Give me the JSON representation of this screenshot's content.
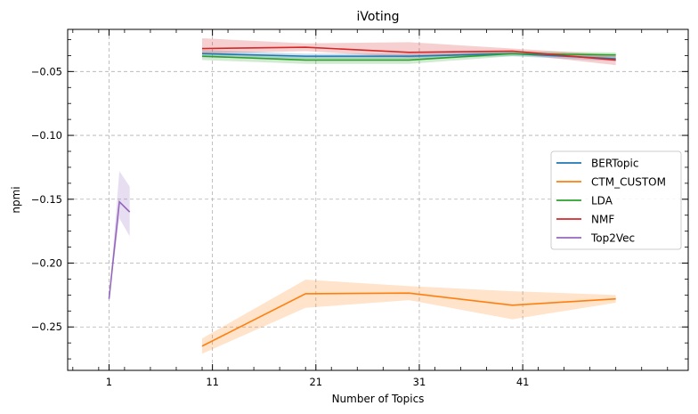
{
  "chart_data": {
    "type": "line",
    "title": "iVoting",
    "xlabel": "Number of Topics",
    "ylabel": "npmi",
    "xlim": [
      -3,
      57
    ],
    "ylim": [
      -0.284,
      -0.017
    ],
    "x_ticks": [
      1,
      11,
      21,
      31,
      41
    ],
    "y_ticks": [
      -0.05,
      -0.1,
      -0.15,
      -0.2,
      -0.25
    ],
    "y_tick_labels": [
      "−0.05",
      "−0.10",
      "−0.15",
      "−0.20",
      "−0.25"
    ],
    "grid": true,
    "legend_position": "center-right",
    "series": [
      {
        "name": "BERTopic",
        "color": "#1f77b4",
        "x": [
          10,
          20,
          30,
          40,
          50
        ],
        "y": [
          -0.036,
          -0.038,
          -0.038,
          -0.036,
          -0.04
        ],
        "lower": [
          -0.039,
          -0.04,
          -0.04,
          -0.038,
          -0.042
        ],
        "upper": [
          -0.033,
          -0.036,
          -0.036,
          -0.034,
          -0.038
        ]
      },
      {
        "name": "CTM_CUSTOM",
        "color": "#ff7f0e",
        "x": [
          10,
          20,
          30,
          40,
          50
        ],
        "y": [
          -0.265,
          -0.224,
          -0.2235,
          -0.233,
          -0.228
        ],
        "lower": [
          -0.271,
          -0.235,
          -0.229,
          -0.244,
          -0.231
        ],
        "upper": [
          -0.259,
          -0.213,
          -0.218,
          -0.222,
          -0.225
        ]
      },
      {
        "name": "LDA",
        "color": "#2ca02c",
        "x": [
          10,
          20,
          30,
          40,
          50
        ],
        "y": [
          -0.038,
          -0.041,
          -0.041,
          -0.036,
          -0.037
        ],
        "lower": [
          -0.041,
          -0.044,
          -0.044,
          -0.038,
          -0.039
        ],
        "upper": [
          -0.035,
          -0.038,
          -0.038,
          -0.034,
          -0.035
        ]
      },
      {
        "name": "NMF",
        "color": "#d62728",
        "x": [
          10,
          20,
          30,
          40,
          50
        ],
        "y": [
          -0.032,
          -0.031,
          -0.035,
          -0.034,
          -0.041
        ],
        "lower": [
          -0.036,
          -0.034,
          -0.039,
          -0.036,
          -0.045
        ],
        "upper": [
          -0.024,
          -0.028,
          -0.027,
          -0.032,
          -0.037
        ]
      },
      {
        "name": "Top2Vec",
        "color": "#9467bd",
        "x": [
          1,
          2,
          3
        ],
        "y": [
          -0.228,
          -0.152,
          -0.16
        ],
        "lower": [
          -0.228,
          -0.165,
          -0.179
        ],
        "upper": [
          -0.228,
          -0.128,
          -0.14
        ]
      }
    ]
  }
}
